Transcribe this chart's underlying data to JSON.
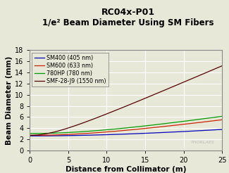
{
  "title1": "RC04x-P01",
  "title2": "1/e² Beam Diameter Using SM Fibers",
  "xlabel": "Distance from Collimator (m)",
  "ylabel": "Beam Diameter (mm)",
  "xlim": [
    0,
    25
  ],
  "ylim": [
    0,
    18
  ],
  "xticks": [
    0,
    5,
    10,
    15,
    20,
    25
  ],
  "yticks": [
    0,
    2,
    4,
    6,
    8,
    10,
    12,
    14,
    16,
    18
  ],
  "lines": [
    {
      "label": "SM400 (405 nm)",
      "color": "#0000bb",
      "D0": 2.62,
      "slope": 0.109
    },
    {
      "label": "SM600 (633 nm)",
      "color": "#cc2200",
      "D0": 2.72,
      "slope": 0.192
    },
    {
      "label": "780HP (780 nm)",
      "color": "#009900",
      "D0": 3.05,
      "slope": 0.213
    },
    {
      "label": "SMF-28-J9 (1550 nm)",
      "color": "#550000",
      "D0": 2.72,
      "slope": 0.598
    }
  ],
  "background_color": "#e8e8d8",
  "plot_bg_color": "#e8e8d8",
  "grid_color": "#ffffff",
  "watermark": "THORLABS",
  "watermark_color": "#aaaaaa",
  "figsize": [
    3.25,
    2.46
  ],
  "dpi": 100,
  "title1_fontsize": 9.0,
  "title2_fontsize": 8.5,
  "axis_label_fontsize": 7.5,
  "tick_fontsize": 7.0,
  "legend_fontsize": 5.8
}
